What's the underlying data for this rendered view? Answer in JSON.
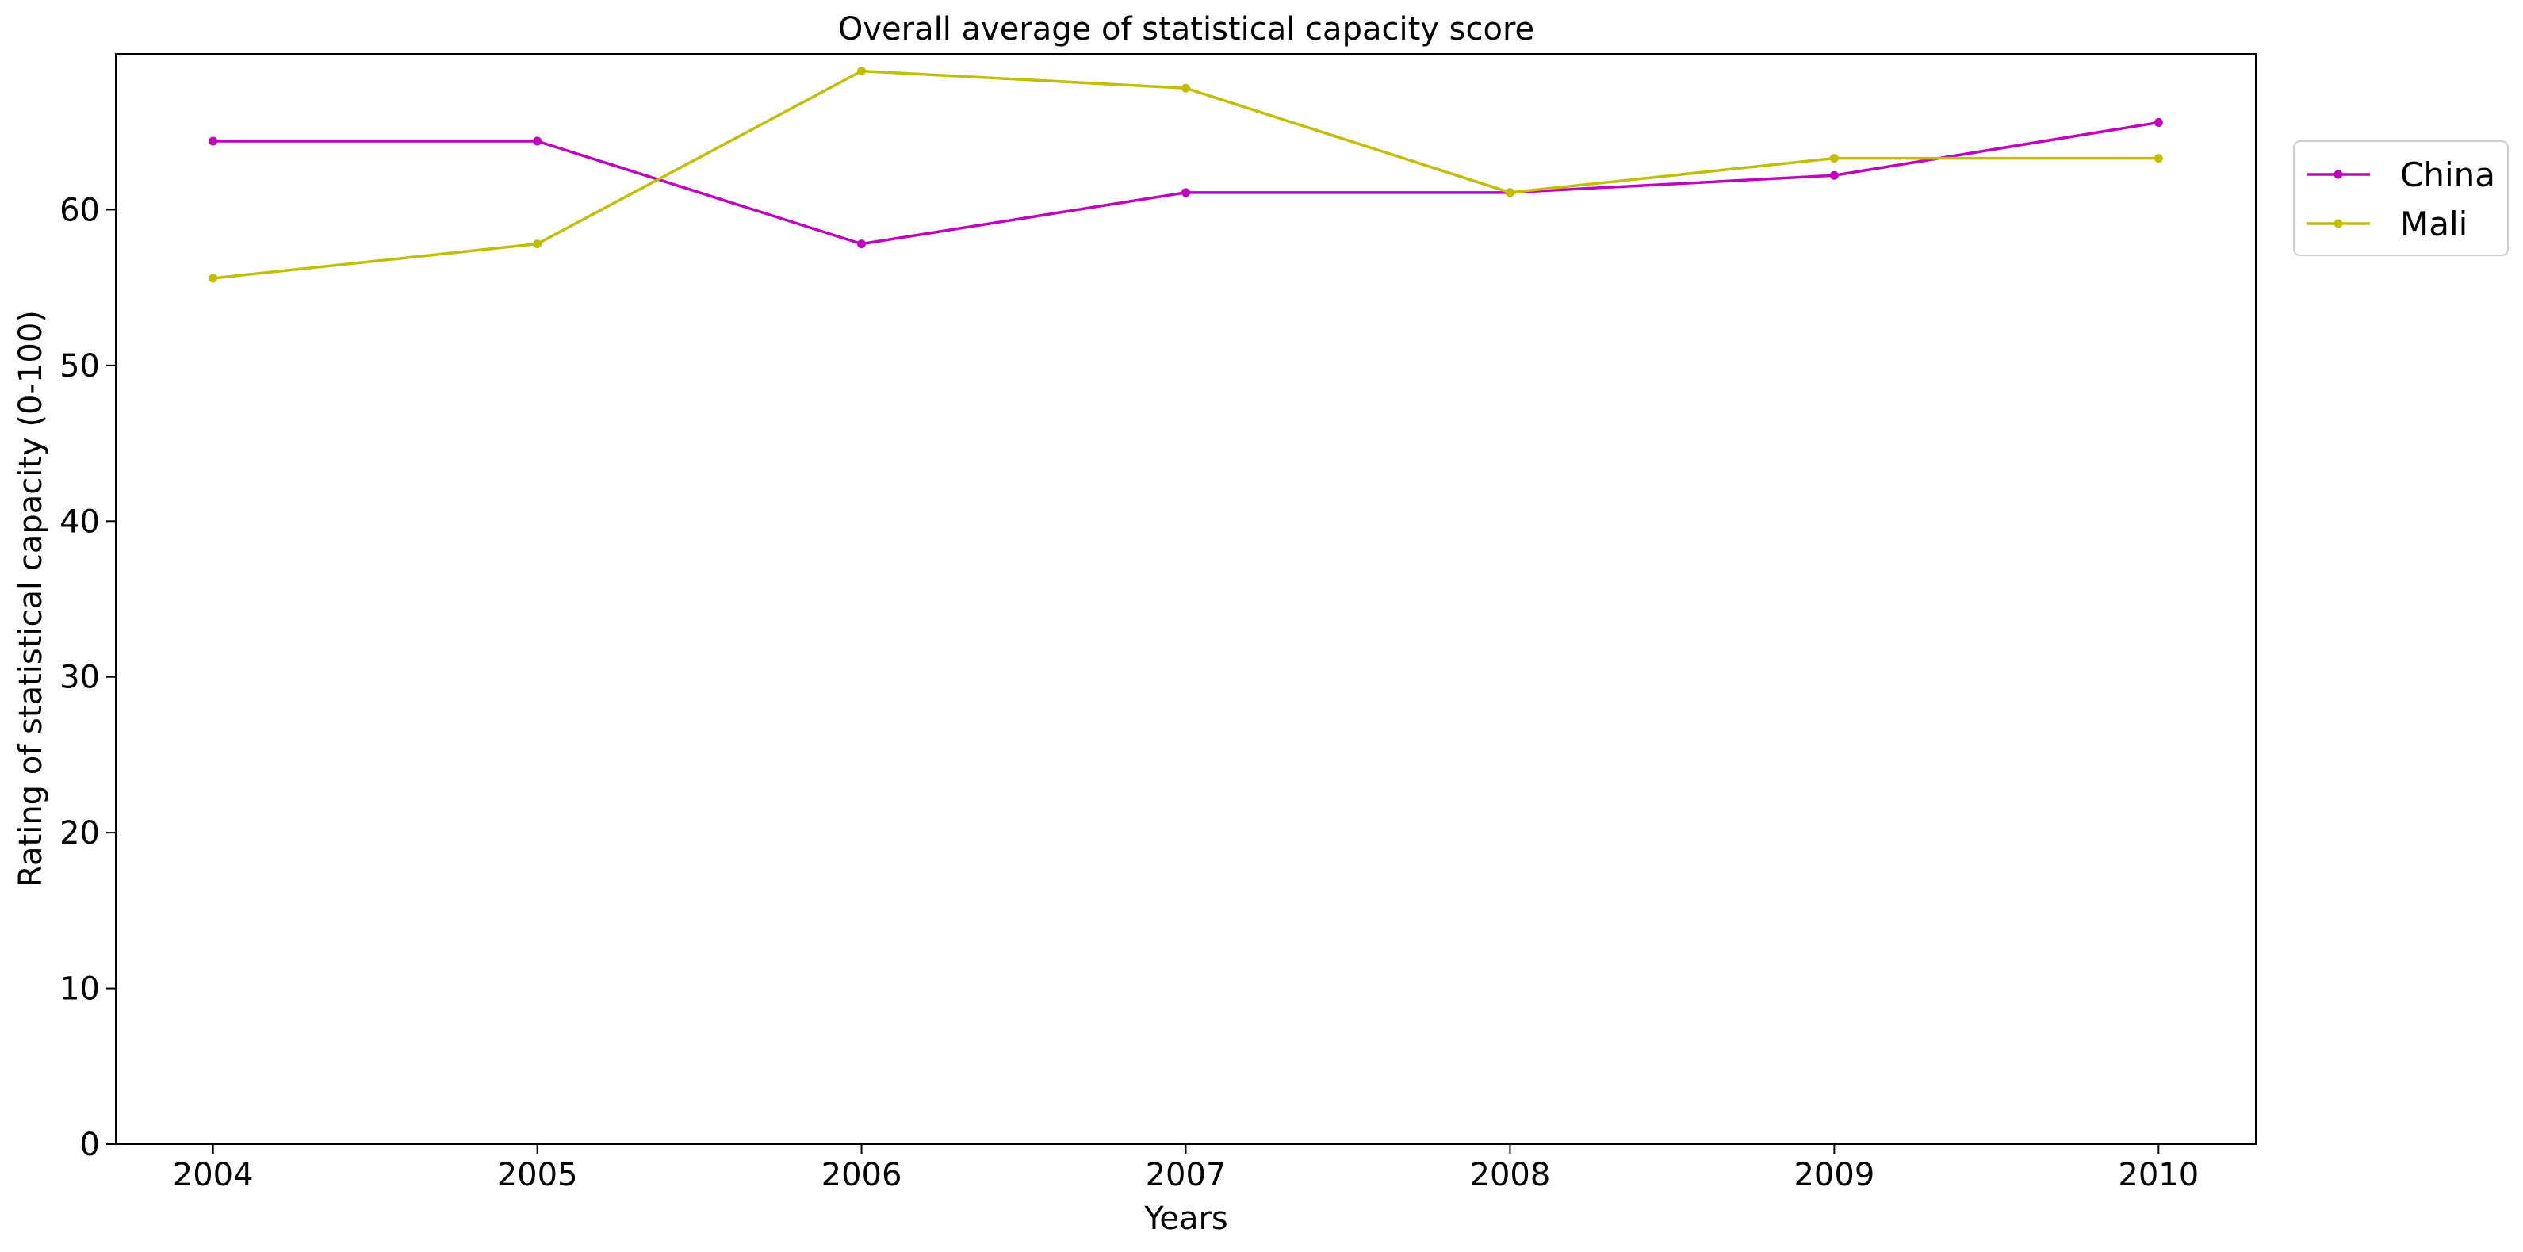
{
  "chart_data": {
    "type": "line",
    "title": "Overall average of statistical capacity score",
    "xlabel": "Years",
    "ylabel": "Rating of statistical capacity (0-100)",
    "x": [
      2004,
      2005,
      2006,
      2007,
      2008,
      2009,
      2010
    ],
    "xticks": [
      "2004",
      "2005",
      "2006",
      "2007",
      "2008",
      "2009",
      "2010"
    ],
    "yticks": [
      "0",
      "10",
      "20",
      "30",
      "40",
      "50",
      "60"
    ],
    "ylim": [
      0,
      70
    ],
    "xlim": [
      2003.7,
      2010.3
    ],
    "grid": false,
    "legend_position": "right-top-outside",
    "series": [
      {
        "name": "China",
        "color": "#bf00bf",
        "values": [
          64.4,
          64.4,
          57.8,
          61.1,
          61.1,
          62.2,
          65.6
        ]
      },
      {
        "name": "Mali",
        "color": "#bfbf00",
        "values": [
          55.6,
          57.8,
          68.9,
          67.8,
          61.1,
          63.3,
          63.3
        ]
      }
    ]
  }
}
